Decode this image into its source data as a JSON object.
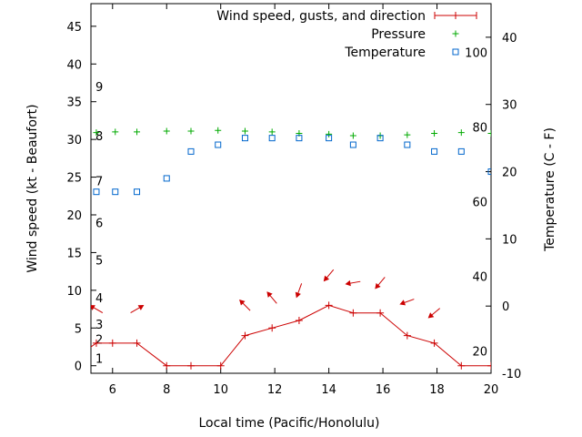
{
  "chart_data": {
    "type": "line",
    "xlabel": "Local time (Pacific/Honolulu)",
    "ylabel": "Wind speed (kt - Beaufort)",
    "y2label": "Temperature (C - F)",
    "xlim": [
      5.2,
      20
    ],
    "ylim": [
      -1,
      48
    ],
    "y2lim": [
      -10,
      45
    ],
    "x_ticks": [
      6,
      8,
      10,
      12,
      14,
      16,
      18,
      20
    ],
    "y_ticks": [
      0,
      5,
      10,
      15,
      20,
      25,
      30,
      35,
      40,
      45
    ],
    "y2_ticks": [
      -10,
      0,
      10,
      20,
      30,
      40
    ],
    "fahrenheit_labels": [
      {
        "label": "20",
        "celsius": -6.67
      },
      {
        "label": "40",
        "celsius": 4.44
      },
      {
        "label": "60",
        "celsius": 15.56
      },
      {
        "label": "80",
        "celsius": 26.67
      },
      {
        "label": "100",
        "celsius": 37.78
      }
    ],
    "beaufort_labels": [
      {
        "label": "1",
        "kt": 1
      },
      {
        "label": "2",
        "kt": 3.5
      },
      {
        "label": "3",
        "kt": 5.5
      },
      {
        "label": "4",
        "kt": 9
      },
      {
        "label": "5",
        "kt": 14
      },
      {
        "label": "6",
        "kt": 19
      },
      {
        "label": "7",
        "kt": 24.5
      },
      {
        "label": "8",
        "kt": 30.5
      },
      {
        "label": "9",
        "kt": 37
      }
    ],
    "legend_position": "top-right",
    "series": [
      {
        "name": "Wind speed, gusts, and direction",
        "color": "#cc0000",
        "x": [
          5,
          5.4,
          6,
          6.9,
          8,
          8.9,
          10,
          10.9,
          11.9,
          12.9,
          14,
          14.9,
          15.9,
          16.9,
          17.9,
          18.9,
          20
        ],
        "y": [
          2,
          3,
          3,
          3,
          0,
          0,
          0,
          4,
          5,
          6,
          8,
          7,
          7,
          4,
          3,
          0,
          0
        ]
      },
      {
        "name": "Pressure",
        "color": "#00aa00",
        "x": [
          5.4,
          6.1,
          6.9,
          8,
          8.9,
          9.9,
          10.9,
          11.9,
          12.9,
          14,
          14.9,
          15.9,
          16.9,
          17.9,
          18.9,
          20
        ],
        "y": [
          30.9,
          31,
          31,
          31.1,
          31.1,
          31.2,
          31.1,
          31,
          30.8,
          30.7,
          30.5,
          30.5,
          30.6,
          30.8,
          30.9,
          30.8
        ]
      },
      {
        "name": "Temperature",
        "color": "#0066cc",
        "axis": "right",
        "x": [
          5.4,
          6.1,
          6.9,
          8,
          8.9,
          9.9,
          10.9,
          11.9,
          12.9,
          14,
          14.9,
          15.9,
          16.9,
          17.9,
          18.9,
          20
        ],
        "y": [
          17,
          17,
          17,
          19,
          23,
          24,
          25,
          25,
          25,
          25,
          24,
          25,
          24,
          23,
          23,
          20
        ]
      }
    ],
    "wind_arrows": [
      {
        "x": 5.4,
        "y": 7.5,
        "dir": 300
      },
      {
        "x": 6.9,
        "y": 7.5,
        "dir": 60
      },
      {
        "x": 10.9,
        "y": 8,
        "dir": 315
      },
      {
        "x": 11.9,
        "y": 9,
        "dir": 320
      },
      {
        "x": 12.9,
        "y": 10,
        "dir": 200
      },
      {
        "x": 14,
        "y": 12,
        "dir": 220
      },
      {
        "x": 14.9,
        "y": 11,
        "dir": 260
      },
      {
        "x": 15.9,
        "y": 11,
        "dir": 220
      },
      {
        "x": 16.9,
        "y": 8.5,
        "dir": 250
      },
      {
        "x": 17.9,
        "y": 7,
        "dir": 230
      }
    ]
  }
}
